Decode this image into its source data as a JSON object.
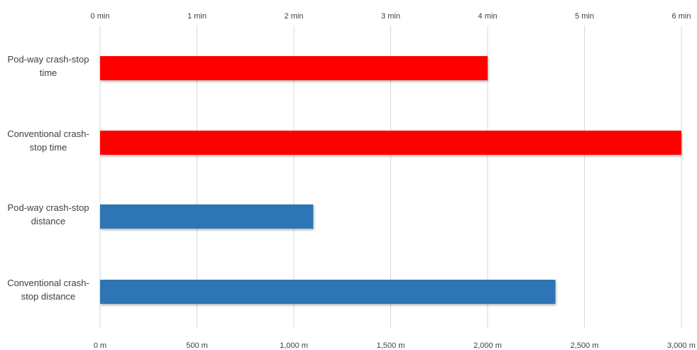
{
  "chart_data": {
    "type": "bar",
    "orientation": "horizontal",
    "grid": true,
    "categories": [
      [
        "Pod-way crash-stop",
        "time"
      ],
      [
        "Conventional crash-",
        "stop time"
      ],
      [
        "Pod-way crash-stop",
        "distance"
      ],
      [
        "Conventional crash-",
        "stop distance"
      ]
    ],
    "series": [
      {
        "axis": "top",
        "color": "#ff0000",
        "points": [
          {
            "category": 0,
            "value": 4.0
          },
          {
            "category": 1,
            "value": 6.0
          }
        ]
      },
      {
        "axis": "bottom",
        "color": "#2e75b6",
        "points": [
          {
            "category": 2,
            "value": 1100
          },
          {
            "category": 3,
            "value": 2350
          }
        ]
      }
    ],
    "top_axis": {
      "range": [
        0,
        6
      ],
      "ticks": [
        0,
        1,
        2,
        3,
        4,
        5,
        6
      ],
      "tick_labels": [
        "0 min",
        "1 min",
        "2 min",
        "3 min",
        "4 min",
        "5 min",
        "6 min"
      ]
    },
    "bottom_axis": {
      "range": [
        0,
        3000
      ],
      "ticks": [
        0,
        500,
        1000,
        1500,
        2000,
        2500,
        3000
      ],
      "tick_labels": [
        "0 m",
        "500 m",
        "1,000 m",
        "1,500 m",
        "2,000 m",
        "2,500 m",
        "3,000 m"
      ]
    }
  }
}
